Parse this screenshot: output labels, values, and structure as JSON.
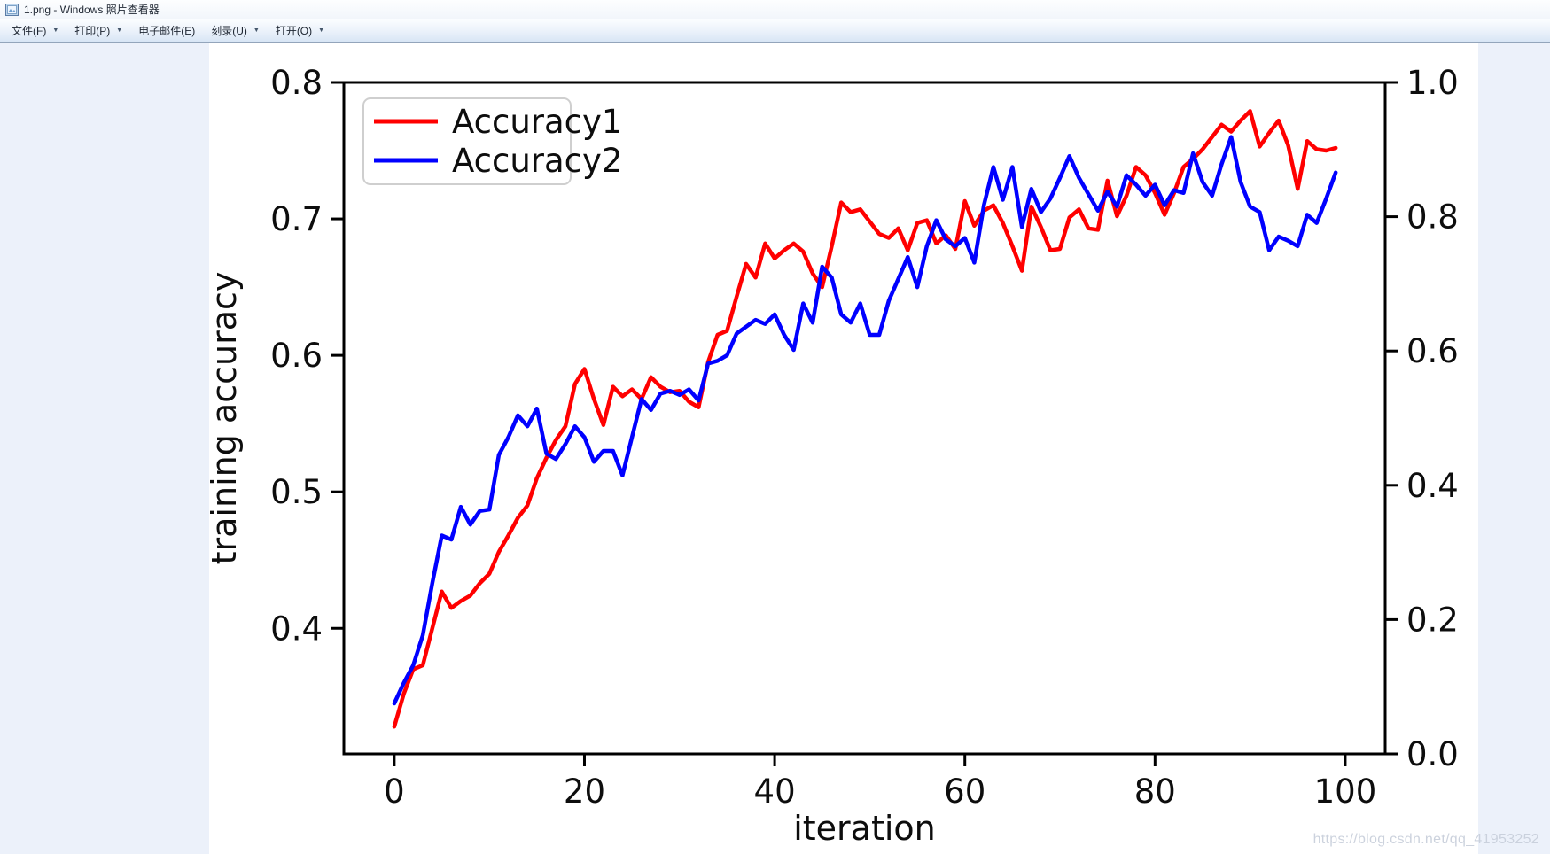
{
  "window": {
    "title": "1.png - Windows 照片查看器"
  },
  "menu": {
    "items": [
      {
        "label": "文件(F)",
        "has_arrow": true
      },
      {
        "label": "打印(P)",
        "has_arrow": true
      },
      {
        "label": "电子邮件(E)",
        "has_arrow": false
      },
      {
        "label": "刻录(U)",
        "has_arrow": true
      },
      {
        "label": "打开(O)",
        "has_arrow": true
      }
    ]
  },
  "watermark": "https://blog.csdn.net/qq_41953252",
  "chart_data": {
    "type": "line",
    "title": "",
    "xlabel": "iteration",
    "ylabel": "training accuracy",
    "x_values": "iteration index 0..99, step 1",
    "x_axis": {
      "ticks": [
        0,
        20,
        40,
        60,
        80,
        100
      ],
      "range": [
        -5.3,
        104.2
      ]
    },
    "left_axis": {
      "ticks": [
        0.8,
        0.7,
        0.6,
        0.5,
        0.4
      ],
      "range": [
        0.308,
        0.8
      ]
    },
    "right_axis": {
      "ticks": [
        1.0,
        0.8,
        0.6,
        0.4,
        0.2,
        0.0
      ],
      "range": [
        0.0,
        1.0
      ]
    },
    "grid": false,
    "legend_position": "upper left",
    "line_width": 4.5,
    "series": [
      {
        "name": "Accuracy1",
        "color": "#ff0000",
        "values": [
          0.328,
          0.352,
          0.37,
          0.373,
          0.4,
          0.427,
          0.415,
          0.42,
          0.424,
          0.433,
          0.44,
          0.456,
          0.468,
          0.481,
          0.49,
          0.51,
          0.525,
          0.538,
          0.548,
          0.579,
          0.59,
          0.568,
          0.549,
          0.577,
          0.57,
          0.575,
          0.568,
          0.584,
          0.577,
          0.573,
          0.574,
          0.566,
          0.562,
          0.595,
          0.615,
          0.618,
          0.643,
          0.667,
          0.657,
          0.682,
          0.671,
          0.677,
          0.682,
          0.676,
          0.66,
          0.65,
          0.68,
          0.712,
          0.705,
          0.707,
          0.698,
          0.689,
          0.686,
          0.693,
          0.677,
          0.697,
          0.699,
          0.682,
          0.688,
          0.678,
          0.713,
          0.695,
          0.706,
          0.71,
          0.697,
          0.68,
          0.662,
          0.709,
          0.694,
          0.677,
          0.678,
          0.701,
          0.707,
          0.693,
          0.692,
          0.728,
          0.702,
          0.717,
          0.738,
          0.732,
          0.719,
          0.703,
          0.719,
          0.738,
          0.744,
          0.751,
          0.76,
          0.769,
          0.764,
          0.772,
          0.779,
          0.753,
          0.763,
          0.772,
          0.754,
          0.722,
          0.757,
          0.751,
          0.75,
          0.752
        ]
      },
      {
        "name": "Accuracy2",
        "color": "#0000ff",
        "values": [
          0.345,
          0.36,
          0.373,
          0.395,
          0.433,
          0.468,
          0.465,
          0.489,
          0.476,
          0.486,
          0.487,
          0.527,
          0.54,
          0.556,
          0.548,
          0.561,
          0.528,
          0.524,
          0.535,
          0.548,
          0.54,
          0.522,
          0.53,
          0.53,
          0.512,
          0.54,
          0.568,
          0.56,
          0.572,
          0.574,
          0.571,
          0.575,
          0.567,
          0.594,
          0.596,
          0.6,
          0.616,
          0.621,
          0.626,
          0.623,
          0.63,
          0.615,
          0.604,
          0.638,
          0.624,
          0.665,
          0.657,
          0.63,
          0.624,
          0.638,
          0.615,
          0.615,
          0.64,
          0.656,
          0.672,
          0.65,
          0.68,
          0.699,
          0.685,
          0.68,
          0.686,
          0.668,
          0.71,
          0.738,
          0.714,
          0.738,
          0.694,
          0.722,
          0.705,
          0.715,
          0.73,
          0.746,
          0.73,
          0.718,
          0.706,
          0.72,
          0.709,
          0.732,
          0.725,
          0.717,
          0.725,
          0.71,
          0.721,
          0.719,
          0.748,
          0.727,
          0.717,
          0.74,
          0.76,
          0.727,
          0.709,
          0.705,
          0.677,
          0.687,
          0.684,
          0.68,
          0.703,
          0.697,
          0.715,
          0.734
        ]
      }
    ]
  }
}
